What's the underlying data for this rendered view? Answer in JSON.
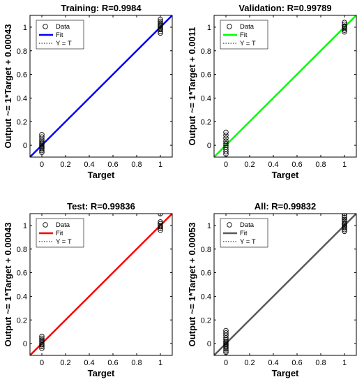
{
  "chart_data": [
    {
      "type": "scatter",
      "title": "Training: R=0.9984",
      "xlabel": "Target",
      "ylabel": "Output ~= 1*Target + 0.00043",
      "xlim": [
        -0.1,
        1.1
      ],
      "ylim": [
        -0.1,
        1.1
      ],
      "x_ticks": [
        "0",
        "0.2",
        "0.4",
        "0.6",
        "0.8",
        "1"
      ],
      "y_ticks": [
        "0",
        "0.2",
        "0.4",
        "0.6",
        "0.8",
        "1"
      ],
      "fit_color": "#0000ff",
      "fit": {
        "slope": 1,
        "intercept": 0.00043
      },
      "legend": {
        "position": "top-left",
        "entries": [
          "Data",
          "Fit",
          "Y = T"
        ]
      },
      "points": [
        {
          "x": 0,
          "y": -0.06
        },
        {
          "x": 0,
          "y": -0.045
        },
        {
          "x": 0,
          "y": -0.03
        },
        {
          "x": 0,
          "y": -0.02
        },
        {
          "x": 0,
          "y": -0.01
        },
        {
          "x": 0,
          "y": 0
        },
        {
          "x": 0,
          "y": 0.01
        },
        {
          "x": 0,
          "y": 0.02
        },
        {
          "x": 0,
          "y": 0.035
        },
        {
          "x": 0,
          "y": 0.05
        },
        {
          "x": 0,
          "y": 0.07
        },
        {
          "x": 0,
          "y": 0.09
        },
        {
          "x": 1,
          "y": 0.95
        },
        {
          "x": 1,
          "y": 0.965
        },
        {
          "x": 1,
          "y": 0.98
        },
        {
          "x": 1,
          "y": 0.99
        },
        {
          "x": 1,
          "y": 1.0
        },
        {
          "x": 1,
          "y": 1.01
        },
        {
          "x": 1,
          "y": 1.02
        },
        {
          "x": 1,
          "y": 1.035
        },
        {
          "x": 1,
          "y": 1.05
        },
        {
          "x": 1,
          "y": 1.065
        }
      ]
    },
    {
      "type": "scatter",
      "title": "Validation: R=0.99789",
      "xlabel": "Target",
      "ylabel": "Output ~= 1*Target + 0.0011",
      "xlim": [
        -0.1,
        1.1
      ],
      "ylim": [
        -0.1,
        1.1
      ],
      "x_ticks": [
        "0",
        "0.2",
        "0.4",
        "0.6",
        "0.8",
        "1"
      ],
      "y_ticks": [
        "0",
        "0.2",
        "0.4",
        "0.6",
        "0.8",
        "1"
      ],
      "fit_color": "#00ff00",
      "fit": {
        "slope": 1,
        "intercept": 0.0011
      },
      "legend": {
        "position": "top-left",
        "entries": [
          "Data",
          "Fit",
          "Y = T"
        ]
      },
      "points": [
        {
          "x": 0,
          "y": -0.075
        },
        {
          "x": 0,
          "y": -0.055
        },
        {
          "x": 0,
          "y": -0.035
        },
        {
          "x": 0,
          "y": -0.015
        },
        {
          "x": 0,
          "y": 0
        },
        {
          "x": 0,
          "y": 0.015
        },
        {
          "x": 0,
          "y": 0.035
        },
        {
          "x": 0,
          "y": 0.06
        },
        {
          "x": 0,
          "y": 0.085
        },
        {
          "x": 0,
          "y": 0.11
        },
        {
          "x": 1,
          "y": 0.96
        },
        {
          "x": 1,
          "y": 0.975
        },
        {
          "x": 1,
          "y": 0.99
        },
        {
          "x": 1,
          "y": 1.0
        },
        {
          "x": 1,
          "y": 1.01
        },
        {
          "x": 1,
          "y": 1.025
        },
        {
          "x": 1,
          "y": 1.04
        }
      ]
    },
    {
      "type": "scatter",
      "title": "Test: R=0.99836",
      "xlabel": "Target",
      "ylabel": "Output ~= 1*Target + 0.00043",
      "xlim": [
        -0.1,
        1.1
      ],
      "ylim": [
        -0.1,
        1.1
      ],
      "x_ticks": [
        "0",
        "0.2",
        "0.4",
        "0.6",
        "0.8",
        "1"
      ],
      "y_ticks": [
        "0",
        "0.2",
        "0.4",
        "0.6",
        "0.8",
        "1"
      ],
      "fit_color": "#ff0000",
      "fit": {
        "slope": 1,
        "intercept": 0.00043
      },
      "legend": {
        "position": "top-left",
        "entries": [
          "Data",
          "Fit",
          "Y = T"
        ]
      },
      "points": [
        {
          "x": 0,
          "y": -0.04
        },
        {
          "x": 0,
          "y": -0.025
        },
        {
          "x": 0,
          "y": -0.01
        },
        {
          "x": 0,
          "y": 0
        },
        {
          "x": 0,
          "y": 0.015
        },
        {
          "x": 0,
          "y": 0.03
        },
        {
          "x": 0,
          "y": 0.045
        },
        {
          "x": 0,
          "y": 0.06
        },
        {
          "x": 1,
          "y": 0.96
        },
        {
          "x": 1,
          "y": 0.975
        },
        {
          "x": 1,
          "y": 0.99
        },
        {
          "x": 1,
          "y": 1.0
        },
        {
          "x": 1,
          "y": 1.015
        },
        {
          "x": 1,
          "y": 1.03
        },
        {
          "x": 1,
          "y": 1.1
        }
      ]
    },
    {
      "type": "scatter",
      "title": "All: R=0.99832",
      "xlabel": "Target",
      "ylabel": "Output ~= 1*Target + 0.00053",
      "xlim": [
        -0.1,
        1.1
      ],
      "ylim": [
        -0.1,
        1.1
      ],
      "x_ticks": [
        "0",
        "0.2",
        "0.4",
        "0.6",
        "0.8",
        "1"
      ],
      "y_ticks": [
        "0",
        "0.2",
        "0.4",
        "0.6",
        "0.8",
        "1"
      ],
      "fit_color": "#595959",
      "fit": {
        "slope": 1,
        "intercept": 0.00053
      },
      "legend": {
        "position": "top-left",
        "entries": [
          "Data",
          "Fit",
          "Y = T"
        ]
      },
      "points": [
        {
          "x": 0,
          "y": -0.075
        },
        {
          "x": 0,
          "y": -0.06
        },
        {
          "x": 0,
          "y": -0.045
        },
        {
          "x": 0,
          "y": -0.03
        },
        {
          "x": 0,
          "y": -0.02
        },
        {
          "x": 0,
          "y": -0.01
        },
        {
          "x": 0,
          "y": 0
        },
        {
          "x": 0,
          "y": 0.01
        },
        {
          "x": 0,
          "y": 0.02
        },
        {
          "x": 0,
          "y": 0.035
        },
        {
          "x": 0,
          "y": 0.05
        },
        {
          "x": 0,
          "y": 0.07
        },
        {
          "x": 0,
          "y": 0.09
        },
        {
          "x": 0,
          "y": 0.11
        },
        {
          "x": 1,
          "y": 0.95
        },
        {
          "x": 1,
          "y": 0.965
        },
        {
          "x": 1,
          "y": 0.98
        },
        {
          "x": 1,
          "y": 0.99
        },
        {
          "x": 1,
          "y": 1.0
        },
        {
          "x": 1,
          "y": 1.01
        },
        {
          "x": 1,
          "y": 1.02
        },
        {
          "x": 1,
          "y": 1.035
        },
        {
          "x": 1,
          "y": 1.05
        },
        {
          "x": 1,
          "y": 1.065
        },
        {
          "x": 1,
          "y": 1.08
        },
        {
          "x": 1,
          "y": 1.1
        }
      ]
    }
  ]
}
